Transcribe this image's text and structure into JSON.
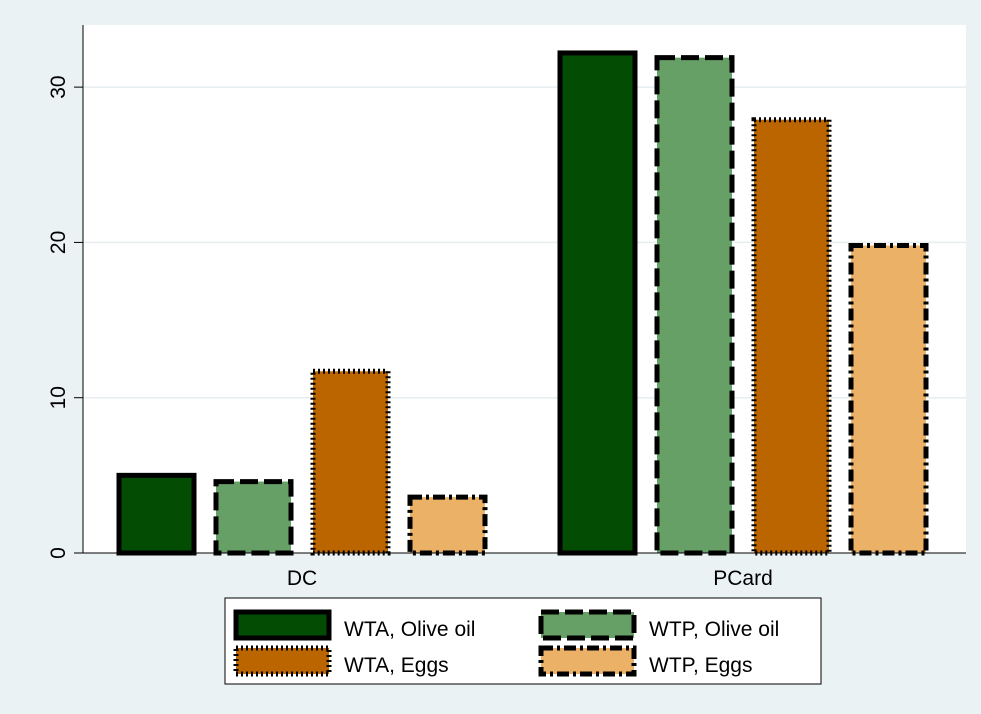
{
  "chart_data": {
    "type": "bar",
    "title": "",
    "xlabel": "",
    "ylabel": "",
    "categories": [
      "DC",
      "PCard"
    ],
    "ylim": [
      0,
      34
    ],
    "yticks": [
      0,
      10,
      20,
      30
    ],
    "grid": true,
    "legend_position": "bottom",
    "series": [
      {
        "name": "WTA, Olive oil",
        "values": [
          5.0,
          32.2
        ],
        "color": "#024d03",
        "border": "solid"
      },
      {
        "name": "WTP, Olive oil",
        "values": [
          4.6,
          31.9
        ],
        "color": "#66a066",
        "border": "dashed"
      },
      {
        "name": "WTA, Eggs",
        "values": [
          11.7,
          27.9
        ],
        "color": "#bb6501",
        "border": "dotted"
      },
      {
        "name": "WTP, Eggs",
        "values": [
          3.6,
          19.8
        ],
        "color": "#ebb166",
        "border": "dash-dot"
      }
    ]
  }
}
